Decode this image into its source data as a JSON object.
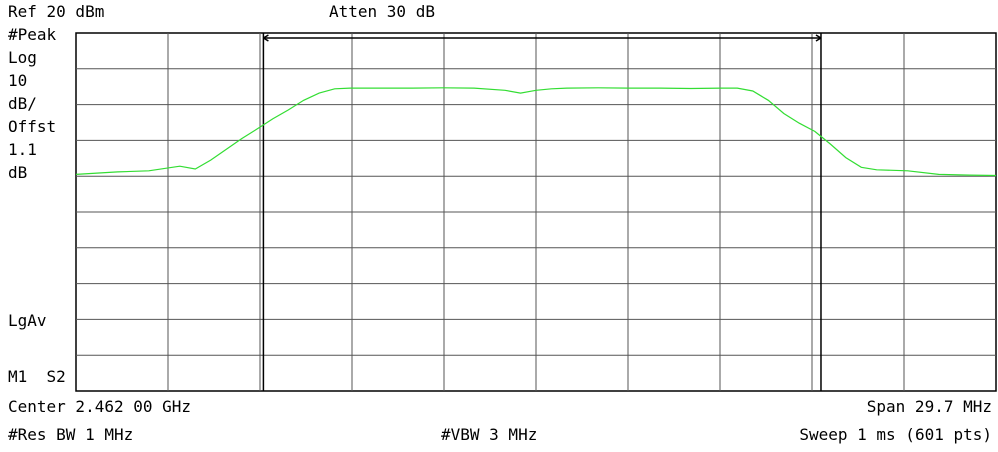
{
  "header": {
    "ref_level": "Ref 20 dBm",
    "attenuation": "Atten 30 dB"
  },
  "left_panel": {
    "detector": "#Peak",
    "scale_type": "Log",
    "scale_value": "10",
    "scale_unit": "dB/",
    "offset_label": "Offst",
    "offset_value": "1.1",
    "offset_unit": "dB",
    "avg_mode": "LgAv",
    "trace_mode": "M1  S2"
  },
  "footer": {
    "center": "Center 2.462 00 GHz",
    "span": "Span 29.7 MHz",
    "rbw": "#Res BW 1 MHz",
    "vbw": "#VBW 3 MHz",
    "sweep": "Sweep 1 ms (601 pts)"
  },
  "chart_data": {
    "type": "line",
    "ref_level_dbm": 20,
    "scale_db_per_div": 10,
    "vertical_divisions": 10,
    "horizontal_divisions": 10,
    "center_ghz": 2.462,
    "span_mhz": 29.7,
    "x_unit": "MHz offset from center",
    "y_unit": "dBm",
    "xlim": [
      -14.85,
      14.85
    ],
    "ylim": [
      -80,
      20
    ],
    "grid": true,
    "trace_color": "#33dd33",
    "bandwidth_markers_mhz": [
      -8.8,
      9.2
    ],
    "series": [
      {
        "x": [
          -14.85,
          -13.5,
          -12.5,
          -11.5,
          -11.0,
          -10.5,
          -10.0,
          -9.5,
          -9.0,
          -8.5,
          -8.0,
          -7.5,
          -7.0,
          -6.5,
          -6.0,
          -5.0,
          -4.0,
          -3.0,
          -2.0,
          -1.0,
          -0.5,
          0.0,
          0.5,
          1.0,
          2.0,
          3.0,
          4.0,
          5.0,
          6.0,
          6.5,
          7.0,
          7.5,
          8.0,
          8.5,
          9.0,
          9.5,
          10.0,
          10.5,
          11.0,
          12.0,
          13.0,
          14.0,
          14.85
        ],
        "y": [
          -19.5,
          -18.8,
          -18.5,
          -17.2,
          -18.0,
          -15.5,
          -12.5,
          -9.5,
          -6.8,
          -4.0,
          -1.5,
          1.2,
          3.2,
          4.4,
          4.6,
          4.6,
          4.6,
          4.7,
          4.6,
          4.0,
          3.2,
          4.0,
          4.4,
          4.6,
          4.7,
          4.6,
          4.6,
          4.5,
          4.6,
          4.6,
          3.8,
          1.2,
          -2.5,
          -5.2,
          -7.5,
          -11.0,
          -14.8,
          -17.5,
          -18.2,
          -18.5,
          -19.5,
          -19.7,
          -19.8
        ]
      }
    ]
  }
}
